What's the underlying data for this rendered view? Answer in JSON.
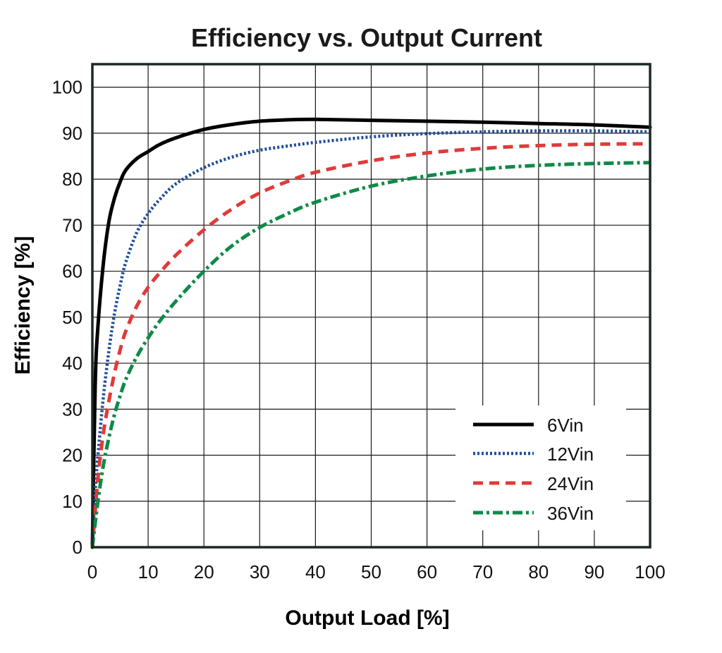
{
  "chart_data": {
    "type": "line",
    "title": "Efficiency vs. Output Current",
    "xlabel": "Output Load [%]",
    "ylabel": "Efficiency [%]",
    "xlim": [
      0,
      100
    ],
    "ylim": [
      0,
      100
    ],
    "xticks": [
      "0",
      "10",
      "20",
      "30",
      "40",
      "50",
      "60",
      "70",
      "80",
      "90",
      "100"
    ],
    "yticks": [
      "0",
      "10",
      "20",
      "30",
      "40",
      "50",
      "60",
      "70",
      "80",
      "90",
      "100"
    ],
    "grid": true,
    "legend_position": "bottom-right",
    "series": [
      {
        "name": "6Vin",
        "color": "#000000",
        "style": "solid",
        "x": [
          0,
          0.5,
          1,
          2,
          3,
          4,
          5,
          6,
          8,
          10,
          12,
          15,
          20,
          25,
          30,
          35,
          40,
          50,
          60,
          70,
          80,
          90,
          100
        ],
        "y": [
          0,
          35,
          48,
          62,
          71,
          76,
          79.5,
          82,
          84.5,
          86,
          87.5,
          89,
          90.8,
          91.9,
          92.6,
          92.9,
          93,
          92.8,
          92.6,
          92.4,
          92.1,
          91.8,
          91.3
        ]
      },
      {
        "name": "12Vin",
        "color": "#1f4e99",
        "style": "dotted",
        "x": [
          0,
          0.5,
          1,
          2,
          3,
          4,
          5,
          6,
          8,
          10,
          12,
          15,
          20,
          25,
          30,
          35,
          40,
          50,
          60,
          70,
          80,
          90,
          100
        ],
        "y": [
          0,
          12,
          20,
          33,
          43,
          51,
          57,
          62,
          68.5,
          72.5,
          75.5,
          79,
          82.5,
          84.8,
          86.3,
          87.2,
          88,
          89.2,
          89.9,
          90.3,
          90.5,
          90.5,
          90.3
        ]
      },
      {
        "name": "24Vin",
        "color": "#e03a3a",
        "style": "dashed",
        "x": [
          0,
          1,
          2,
          3,
          4,
          5,
          6,
          8,
          10,
          12,
          15,
          20,
          25,
          30,
          35,
          40,
          50,
          60,
          70,
          80,
          90,
          100
        ],
        "y": [
          0,
          15,
          25,
          32,
          38,
          43,
          47,
          52.5,
          56.5,
          59.5,
          63.5,
          69,
          73.5,
          77,
          79.5,
          81.5,
          84,
          85.7,
          86.7,
          87.3,
          87.6,
          87.7
        ]
      },
      {
        "name": "36Vin",
        "color": "#0e8a47",
        "style": "dashdot",
        "x": [
          0,
          1,
          2,
          3,
          4,
          5,
          6,
          8,
          10,
          12,
          15,
          20,
          25,
          30,
          35,
          40,
          50,
          60,
          70,
          80,
          90,
          100
        ],
        "y": [
          0,
          10,
          18,
          24,
          29,
          33,
          36.5,
          41.5,
          45.5,
          49,
          53.5,
          60,
          65.5,
          69.5,
          72.5,
          75,
          78.5,
          80.7,
          82.2,
          83,
          83.4,
          83.6
        ]
      }
    ]
  }
}
